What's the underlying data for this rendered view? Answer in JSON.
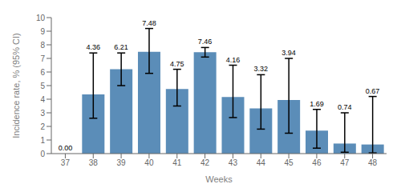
{
  "chart_data": {
    "type": "bar",
    "categories": [
      "37",
      "38",
      "39",
      "40",
      "41",
      "42",
      "43",
      "44",
      "45",
      "46",
      "47",
      "48"
    ],
    "values": [
      0.0,
      4.36,
      6.21,
      7.48,
      4.75,
      7.46,
      4.16,
      3.32,
      3.94,
      1.69,
      0.74,
      0.67
    ],
    "value_labels": [
      "0.00",
      "4.36",
      "6.21",
      "7.48",
      "4.75",
      "7.46",
      "4.16",
      "3.32",
      "3.94",
      "1.69",
      "0.74",
      "0.67"
    ],
    "ci_lower": [
      null,
      2.6,
      5.0,
      5.9,
      3.5,
      7.1,
      2.65,
      1.8,
      1.5,
      0.4,
      0.1,
      0.05
    ],
    "ci_upper": [
      null,
      7.4,
      7.4,
      9.2,
      6.2,
      7.8,
      6.5,
      5.8,
      7.0,
      3.25,
      3.0,
      4.2
    ],
    "color": "#5b8db8",
    "xlabel": "Weeks",
    "ylabel": "Incidence rate, % (95% CI)",
    "ylim": [
      0,
      10
    ],
    "yticks": [
      0,
      1,
      2,
      3,
      4,
      5,
      6,
      7,
      8,
      9,
      10
    ],
    "grid": false,
    "data_labels": true
  }
}
